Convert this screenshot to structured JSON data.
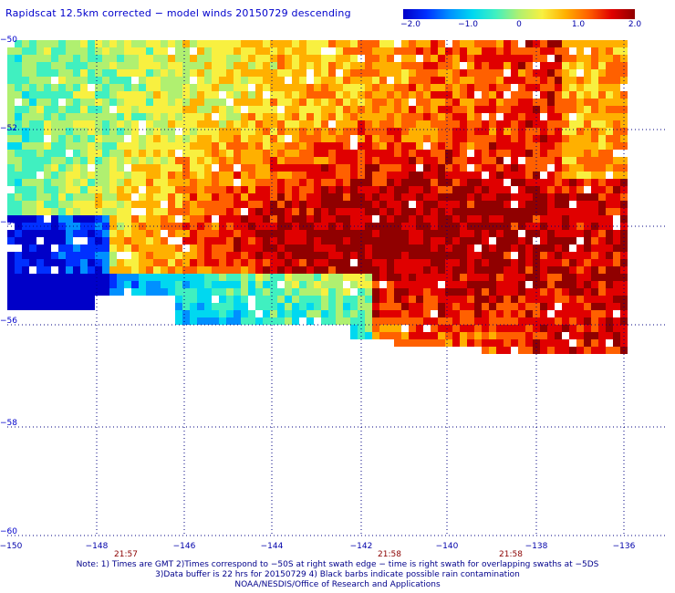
{
  "title": "Rapidscat 12.5km corrected − model winds 20150729 descending",
  "colorbar": {
    "ticks": [
      "−2.0",
      "−1.0",
      "0",
      "1.0",
      "2.0"
    ],
    "colors": [
      "#0000c8",
      "#0030ff",
      "#0090ff",
      "#00d8f0",
      "#40f0c0",
      "#b0f070",
      "#f8f040",
      "#ffb000",
      "#ff6000",
      "#e00000",
      "#900000"
    ]
  },
  "map": {
    "lat_labels": [
      "−50",
      "−52",
      "−54",
      "−56",
      "−58",
      "−60"
    ],
    "lon_labels": [
      "−150",
      "−148",
      "−146",
      "−144",
      "−142",
      "−140",
      "−138",
      "−136"
    ],
    "time_labels": [
      {
        "text": "21:57",
        "lon": -147.5
      },
      {
        "text": "21:58",
        "lon": -141.3
      },
      {
        "text": "21:58",
        "lon": -137.5
      }
    ]
  },
  "notes": [
    "Note: 1) Times are GMT 2)Times correspond to −50S at right swath edge − time is right swath for overlapping swaths at −5DS",
    "3)Data buffer is 22 hrs for 20150729 4) Black barbs indicate possible rain contamination",
    "NOAA/NESDIS/Office of Research and Applications"
  ]
}
